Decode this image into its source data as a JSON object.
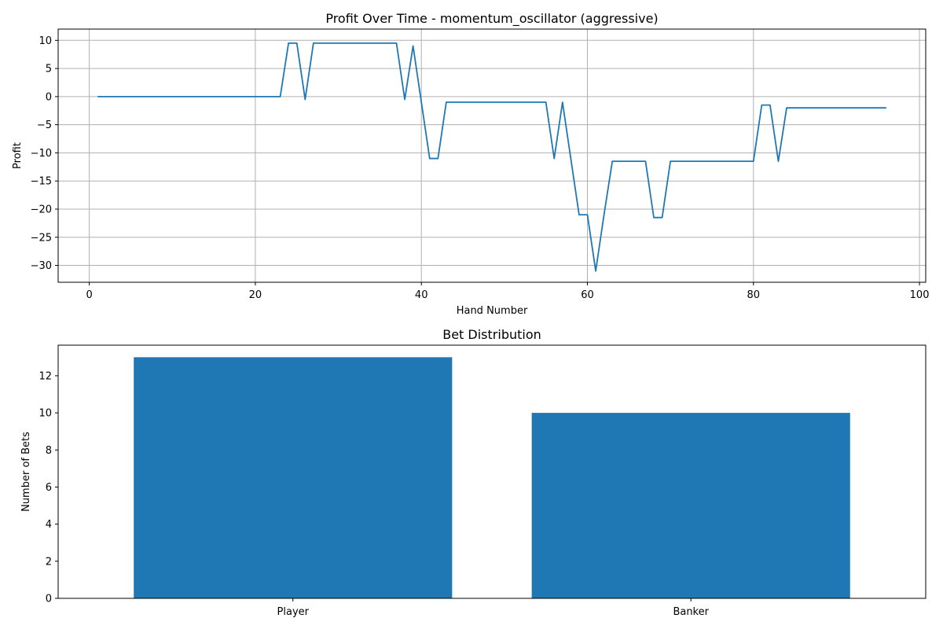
{
  "chart_data": [
    {
      "type": "line",
      "title": "Profit Over Time - momentum_oscillator (aggressive)",
      "xlabel": "Hand Number",
      "ylabel": "Profit",
      "xlim": [
        -3.75,
        100.75
      ],
      "ylim": [
        -33.0,
        12.0
      ],
      "xticks": [
        0,
        20,
        40,
        60,
        80,
        100
      ],
      "xtick_labels": [
        "0",
        "20",
        "40",
        "60",
        "80",
        "100"
      ],
      "yticks": [
        10,
        5,
        0,
        -5,
        -10,
        -15,
        -20,
        -25,
        -30
      ],
      "ytick_labels": [
        "10",
        "5",
        "0",
        "−5",
        "−10",
        "−15",
        "−20",
        "−25",
        "−30"
      ],
      "grid": true,
      "color": "#1f77b4",
      "series": [
        {
          "x": [
            1,
            23,
            24,
            25,
            26,
            27,
            37,
            38,
            39,
            40,
            41,
            42,
            43,
            55,
            56,
            57,
            58,
            59,
            60,
            61,
            62,
            63,
            67,
            68,
            69,
            70,
            80,
            81,
            82,
            83,
            84,
            96
          ],
          "y": [
            0,
            0,
            9.5,
            9.5,
            -0.5,
            9.5,
            9.5,
            -0.5,
            9,
            -1,
            -11,
            -11,
            -1,
            -1,
            -11,
            -1,
            -11,
            -21,
            -21,
            -31,
            -21,
            -11.5,
            -11.5,
            -21.5,
            -21.5,
            -11.5,
            -11.5,
            -1.5,
            -1.5,
            -11.5,
            -2,
            -2
          ]
        }
      ]
    },
    {
      "type": "bar",
      "title": "Bet Distribution",
      "xlabel": "",
      "ylabel": "Number of Bets",
      "categories": [
        "Player",
        "Banker"
      ],
      "values": [
        13,
        10
      ],
      "ylim": [
        0,
        13.65
      ],
      "yticks": [
        0,
        2,
        4,
        6,
        8,
        10,
        12
      ],
      "ytick_labels": [
        "0",
        "2",
        "4",
        "6",
        "8",
        "10",
        "12"
      ],
      "grid": false,
      "color": "#1f77b4"
    }
  ]
}
